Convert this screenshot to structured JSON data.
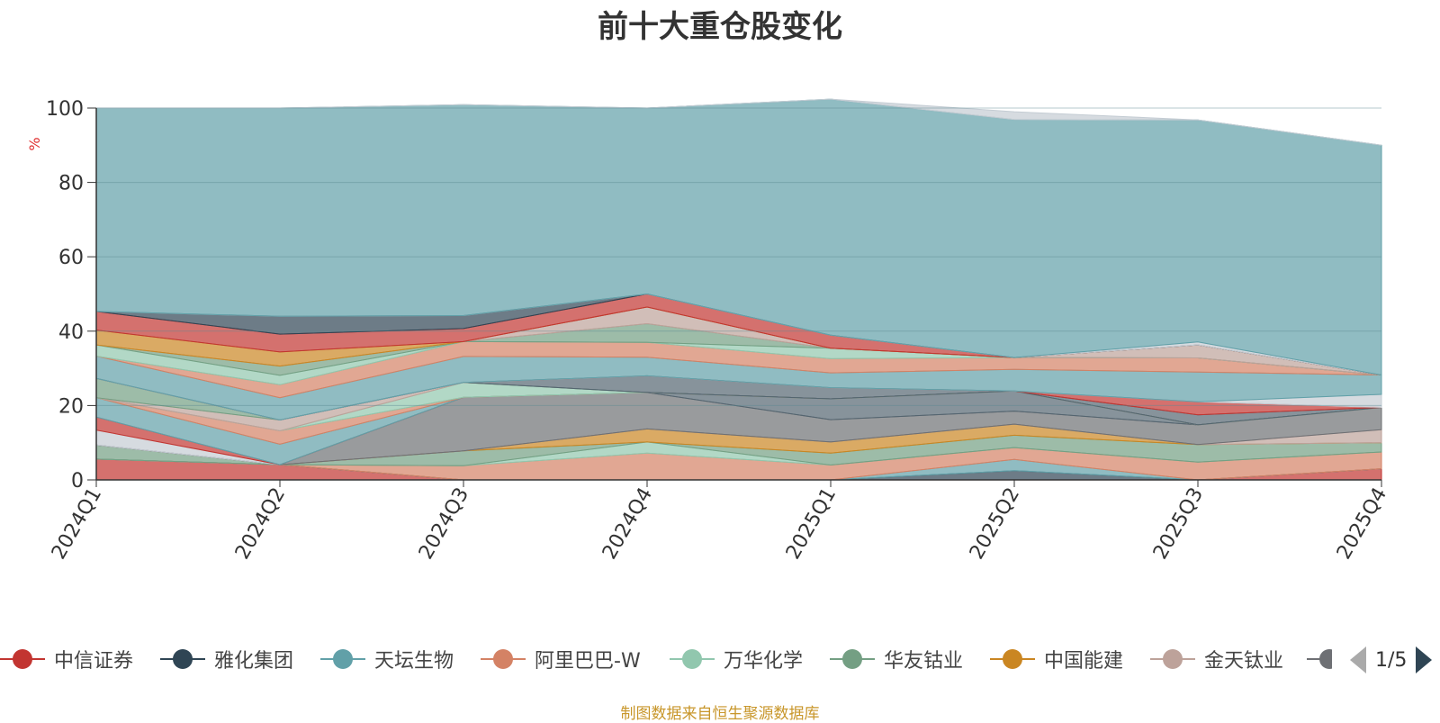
{
  "chart_data": {
    "type": "area",
    "title": "前十大重仓股变化",
    "ylabel": "%",
    "ylim": [
      0,
      100
    ],
    "yticks": [
      0,
      20,
      40,
      60,
      80,
      100
    ],
    "grid": true,
    "stacked": true,
    "x": [
      "2024Q1",
      "2024Q2",
      "2024Q3",
      "2024Q4",
      "2025Q1",
      "2025Q2",
      "2025Q3",
      "2025Q4"
    ],
    "series": [
      {
        "name": "中信证券",
        "color": "#c23531",
        "values": [
          5.6,
          4.1,
          0,
          0,
          0,
          0,
          0,
          3.0
        ]
      },
      {
        "name": "雅化集团",
        "color": "#2f4554",
        "values": [
          0,
          0,
          0,
          0,
          0,
          2.5,
          0,
          0
        ]
      },
      {
        "name": "天坛生物",
        "color": "#61a0a8",
        "values": [
          0,
          0,
          0,
          0,
          0,
          3.0,
          0,
          0
        ]
      },
      {
        "name": "阿里巴巴-W",
        "color": "#d48265",
        "values": [
          0,
          0,
          3.8,
          7.2,
          4.0,
          3.2,
          4.8,
          4.5
        ]
      },
      {
        "name": "万华化学",
        "color": "#91c7ae",
        "values": [
          0,
          0,
          0,
          3.0,
          0,
          0,
          0,
          0
        ]
      },
      {
        "name": "华友钴业",
        "color": "#749f83",
        "values": [
          3.8,
          0,
          4.0,
          0,
          3.2,
          3.3,
          4.7,
          2.5
        ]
      },
      {
        "name": "中国能建",
        "color": "#ca8622",
        "values": [
          0,
          0,
          0,
          3.5,
          3.0,
          3.0,
          0,
          0
        ]
      },
      {
        "name": "金天钛业",
        "color": "#bda29a",
        "values": [
          0,
          0,
          0,
          0,
          0,
          0,
          0,
          3.5
        ]
      },
      {
        "name": "",
        "color": "#6e7074",
        "values": [
          0,
          0,
          14.4,
          9.8,
          6.0,
          3.5,
          5.3,
          6.0
        ]
      },
      {
        "name": "",
        "color": "#546570",
        "values": [
          0,
          0,
          0,
          0,
          5.6,
          5.4,
          0,
          0
        ]
      },
      {
        "name": "",
        "color": "#c4ccd3",
        "values": [
          4.0,
          0,
          0,
          0,
          0,
          0,
          0,
          0
        ]
      },
      {
        "name": "",
        "color": "#c23531",
        "values": [
          3.5,
          0,
          0,
          0,
          0,
          0,
          0,
          0
        ]
      },
      {
        "name": "",
        "color": "#61a0a8",
        "values": [
          5.2,
          5.5,
          0,
          0,
          0,
          0,
          0,
          0
        ]
      },
      {
        "name": "",
        "color": "#d48265",
        "values": [
          0,
          3.6,
          0,
          0,
          0,
          0,
          0,
          0
        ]
      },
      {
        "name": "",
        "color": "#91c7ae",
        "values": [
          0,
          0,
          4.0,
          0,
          0,
          0,
          0,
          0
        ]
      },
      {
        "name": "",
        "color": "#bda29a",
        "values": [
          0,
          2.9,
          0,
          0,
          0,
          0,
          0,
          0
        ]
      },
      {
        "name": "",
        "color": "#749f83",
        "values": [
          5.2,
          0,
          0,
          0,
          0,
          0,
          0,
          0
        ]
      },
      {
        "name": "",
        "color": "#546570",
        "values": [
          0,
          0,
          0,
          4.5,
          3.0,
          0,
          2.7,
          0
        ]
      },
      {
        "name": "",
        "color": "#c23531",
        "values": [
          0,
          0,
          0,
          0,
          0,
          0,
          3.5,
          0
        ]
      },
      {
        "name": "",
        "color": "#c4ccd3",
        "values": [
          0,
          0,
          0,
          0,
          0,
          0,
          0,
          3.5
        ]
      },
      {
        "name": "",
        "color": "#61a0a8",
        "values": [
          6.0,
          6.0,
          7.0,
          5.0,
          4.0,
          5.8,
          8.0,
          5.2
        ]
      },
      {
        "name": "",
        "color": "#d48265",
        "values": [
          0,
          3.5,
          4.0,
          4.0,
          3.8,
          3.2,
          3.8,
          0
        ]
      },
      {
        "name": "",
        "color": "#91c7ae",
        "values": [
          3.0,
          2.5,
          0,
          0,
          2.8,
          0,
          0,
          0
        ]
      },
      {
        "name": "",
        "color": "#749f83",
        "values": [
          0,
          2.5,
          0,
          5.0,
          0,
          0,
          0,
          0
        ]
      },
      {
        "name": "",
        "color": "#bda29a",
        "values": [
          0,
          0,
          0,
          4.5,
          0,
          0,
          3.5,
          0
        ]
      },
      {
        "name": "",
        "color": "#ca8622",
        "values": [
          4.0,
          3.8,
          0,
          0,
          0,
          0,
          0,
          0
        ]
      },
      {
        "name": "",
        "color": "#c23531",
        "values": [
          5.0,
          4.8,
          3.5,
          3.5,
          3.5,
          0,
          0,
          0
        ]
      },
      {
        "name": "",
        "color": "#2f4554",
        "values": [
          0,
          4.8,
          3.5,
          0,
          0,
          0,
          0,
          0
        ]
      },
      {
        "name": "",
        "color": "#c4ccd3",
        "values": [
          0,
          0,
          0,
          0,
          0,
          0,
          0.8,
          0
        ]
      },
      {
        "name": "",
        "color": "#61a0a8",
        "values": [
          54.7,
          56.0,
          56.7,
          50.0,
          63.5,
          64.0,
          59.7,
          61.8
        ]
      },
      {
        "name": "",
        "color": "#c4ccd3",
        "values": [
          0,
          0,
          0,
          0,
          0,
          2.1,
          0,
          0
        ]
      }
    ]
  },
  "legend": {
    "items": [
      {
        "label": "中信证券",
        "color": "#c23531"
      },
      {
        "label": "雅化集团",
        "color": "#2f4554"
      },
      {
        "label": "天坛生物",
        "color": "#61a0a8"
      },
      {
        "label": "阿里巴巴-W",
        "color": "#d48265"
      },
      {
        "label": "万华化学",
        "color": "#91c7ae"
      },
      {
        "label": "华友钴业",
        "color": "#749f83"
      },
      {
        "label": "中国能建",
        "color": "#ca8622"
      },
      {
        "label": "金天钛业",
        "color": "#bda29a"
      }
    ],
    "truncated_color": "#6e7074",
    "pager": "1/5"
  },
  "footer": "制图数据来自恒生聚源数据库"
}
